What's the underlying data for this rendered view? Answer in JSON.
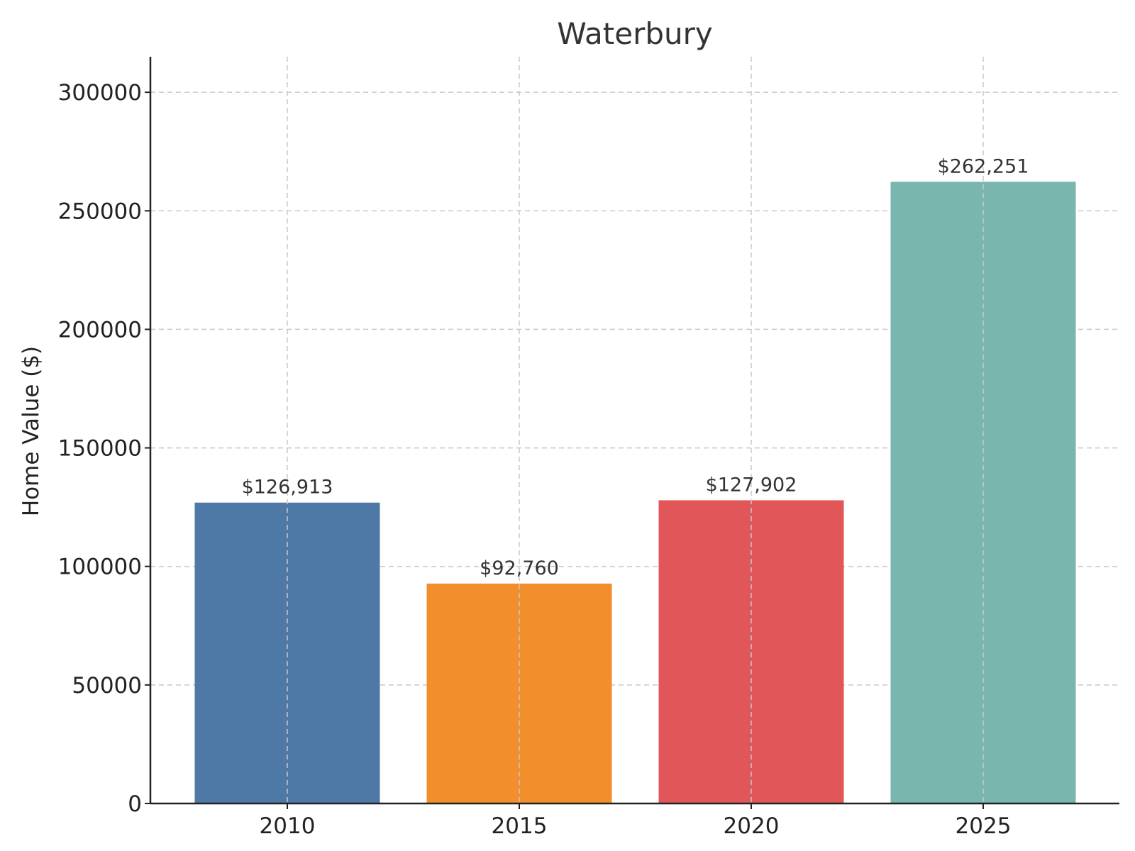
{
  "chart_data": {
    "type": "bar",
    "title": "Waterbury",
    "xlabel": "",
    "ylabel": "Home Value ($)",
    "categories": [
      "2010",
      "2015",
      "2020",
      "2025"
    ],
    "values": [
      126913,
      92760,
      127902,
      262251
    ],
    "value_labels": [
      "$126,913",
      "$92,760",
      "$127,902",
      "$262,251"
    ],
    "colors": [
      "#4e78a6",
      "#f28e2c",
      "#e15759",
      "#79b6ae"
    ],
    "ylim": [
      0,
      315000
    ],
    "yticks": [
      0,
      50000,
      100000,
      150000,
      200000,
      250000,
      300000
    ],
    "ytick_labels": [
      "0",
      "50000",
      "100000",
      "150000",
      "200000",
      "250000",
      "300000"
    ],
    "grid": true,
    "legend": false
  }
}
